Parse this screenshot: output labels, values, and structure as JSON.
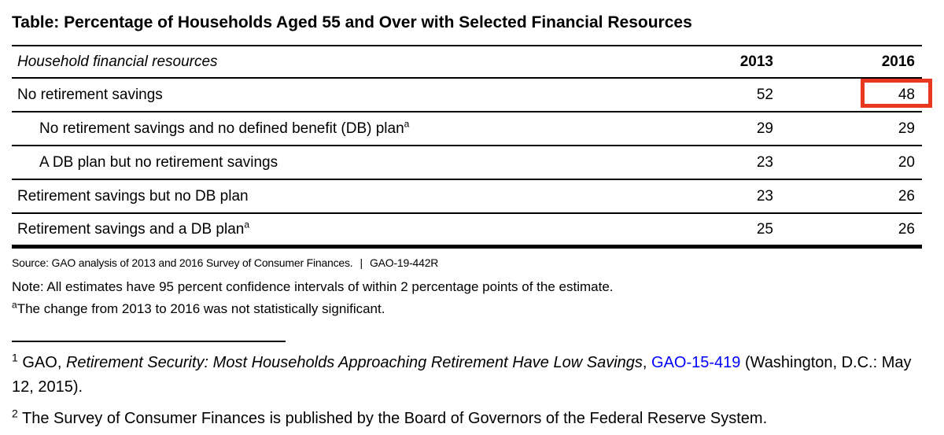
{
  "page_title": "Table: Percentage of Households Aged 55 and Over with Selected Financial Resources",
  "table": {
    "header": {
      "resources": "Household financial resources",
      "col_2013": "2013",
      "col_2016": "2016"
    },
    "rows": [
      {
        "label": "No retirement savings",
        "sup": "",
        "y2013": "52",
        "y2016": "48"
      },
      {
        "label": "No retirement savings and no defined benefit (DB) plan",
        "sup": "a",
        "y2013": "29",
        "y2016": "29"
      },
      {
        "label": "A DB plan but no retirement savings",
        "sup": "",
        "y2013": "23",
        "y2016": "20"
      },
      {
        "label": "Retirement savings but no DB plan",
        "sup": "",
        "y2013": "23",
        "y2016": "26"
      },
      {
        "label": "Retirement savings and a DB plan",
        "sup": "a",
        "y2013": "25",
        "y2016": "26"
      }
    ],
    "highlight": {
      "row_label": "No retirement savings",
      "column": "2016",
      "value": "48",
      "color": "#e8391f"
    }
  },
  "source": {
    "text": "Source: GAO analysis of 2013 and 2016 Survey of Consumer Finances.",
    "separator": "|",
    "report_number": "GAO-19-442R"
  },
  "note": "Note: All estimates have 95 percent confidence intervals of within 2 percentage points of the estimate.",
  "table_footnote": {
    "marker": "a",
    "text": "The change from 2013 to 2016 was not statistically significant."
  },
  "footnotes": [
    {
      "marker": "1",
      "prefix": "GAO, ",
      "italic_title": "Retirement Security: Most Households Approaching Retirement Have Low Savings",
      "after_title": ", ",
      "link_text": "GAO-15-419",
      "line2": "(Washington, D.C.: May 12, 2015)."
    },
    {
      "marker": "2",
      "text": "The Survey of Consumer Finances is published by the Board of Governors of the Federal Reserve System."
    }
  ],
  "colors": {
    "link_blue": "#0000fe",
    "highlight_red": "#e8391f",
    "text_black": "#000000"
  }
}
